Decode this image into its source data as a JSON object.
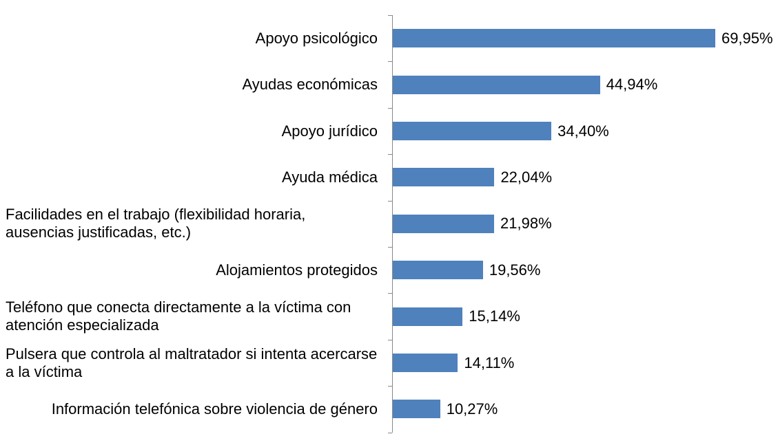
{
  "chart_data": {
    "type": "barh",
    "categories": [
      "Apoyo psicológico",
      "Ayudas económicas",
      "Apoyo jurídico",
      "Ayuda médica",
      "Facilidades en el trabajo (flexibilidad horaria, ausencias justificadas, etc.)",
      "Alojamientos protegidos",
      "Teléfono que conecta directamente a la víctima con atención especializada",
      "Pulsera que controla al maltratador si intenta acercarse a la víctima",
      "Información telefónica sobre violencia de género"
    ],
    "values": [
      69.95,
      44.94,
      34.4,
      22.04,
      21.98,
      19.56,
      15.14,
      14.11,
      10.27
    ],
    "value_labels": [
      "69,95%",
      "44,94%",
      "34,40%",
      "22,04%",
      "21,98%",
      "19,56%",
      "15,14%",
      "14,11%",
      "10,27%"
    ],
    "color": "#4f81bd"
  }
}
